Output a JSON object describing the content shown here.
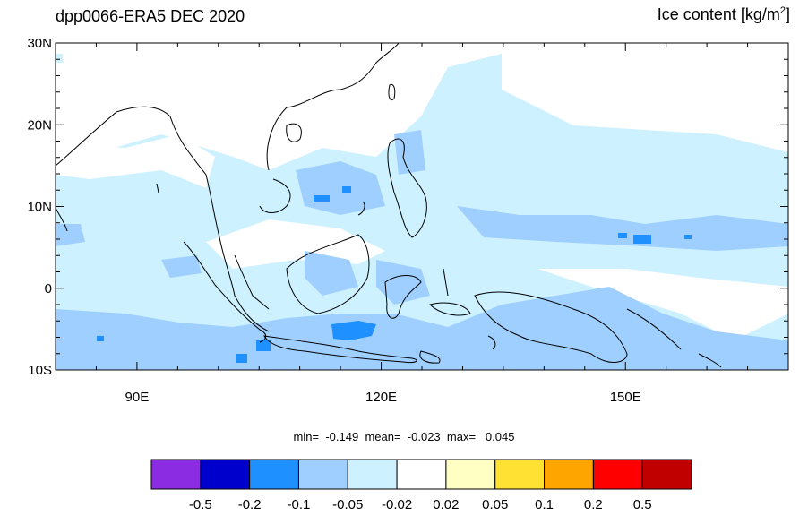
{
  "title": {
    "left": "dpp0066-ERA5 DEC 2020",
    "right_text": "Ice content  [kg/m",
    "right_sup": "2",
    "right_close": "]"
  },
  "axes": {
    "lat_labels": [
      "30N",
      "20N",
      "10N",
      "0",
      "10S"
    ],
    "lat_values": [
      30,
      20,
      10,
      0,
      -10
    ],
    "lon_labels": [
      "90E",
      "120E",
      "150E"
    ],
    "lon_values": [
      90,
      120,
      150
    ],
    "lon_range": [
      80,
      170
    ],
    "lat_range": [
      -10,
      30
    ]
  },
  "stats": {
    "min_label": "min=",
    "min": "-0.149",
    "mean_label": "mean=",
    "mean": "-0.023",
    "max_label": "max=",
    "max": "0.045"
  },
  "colorbar": {
    "colors": [
      "#8b2be2",
      "#0000cd",
      "#1e90ff",
      "#9fcfff",
      "#cdf1ff",
      "#ffffff",
      "#ffffc4",
      "#ffe133",
      "#ffa500",
      "#ff0000",
      "#c00000"
    ],
    "labels": [
      "-0.5",
      "-0.2",
      "-0.1",
      "-0.05",
      "-0.02",
      "0.02",
      "0.05",
      "0.1",
      "0.2",
      "0.5"
    ]
  },
  "field_colors": {
    "light": "#cdf1ff",
    "medium": "#9fcfff",
    "strong": "#1e90ff"
  }
}
